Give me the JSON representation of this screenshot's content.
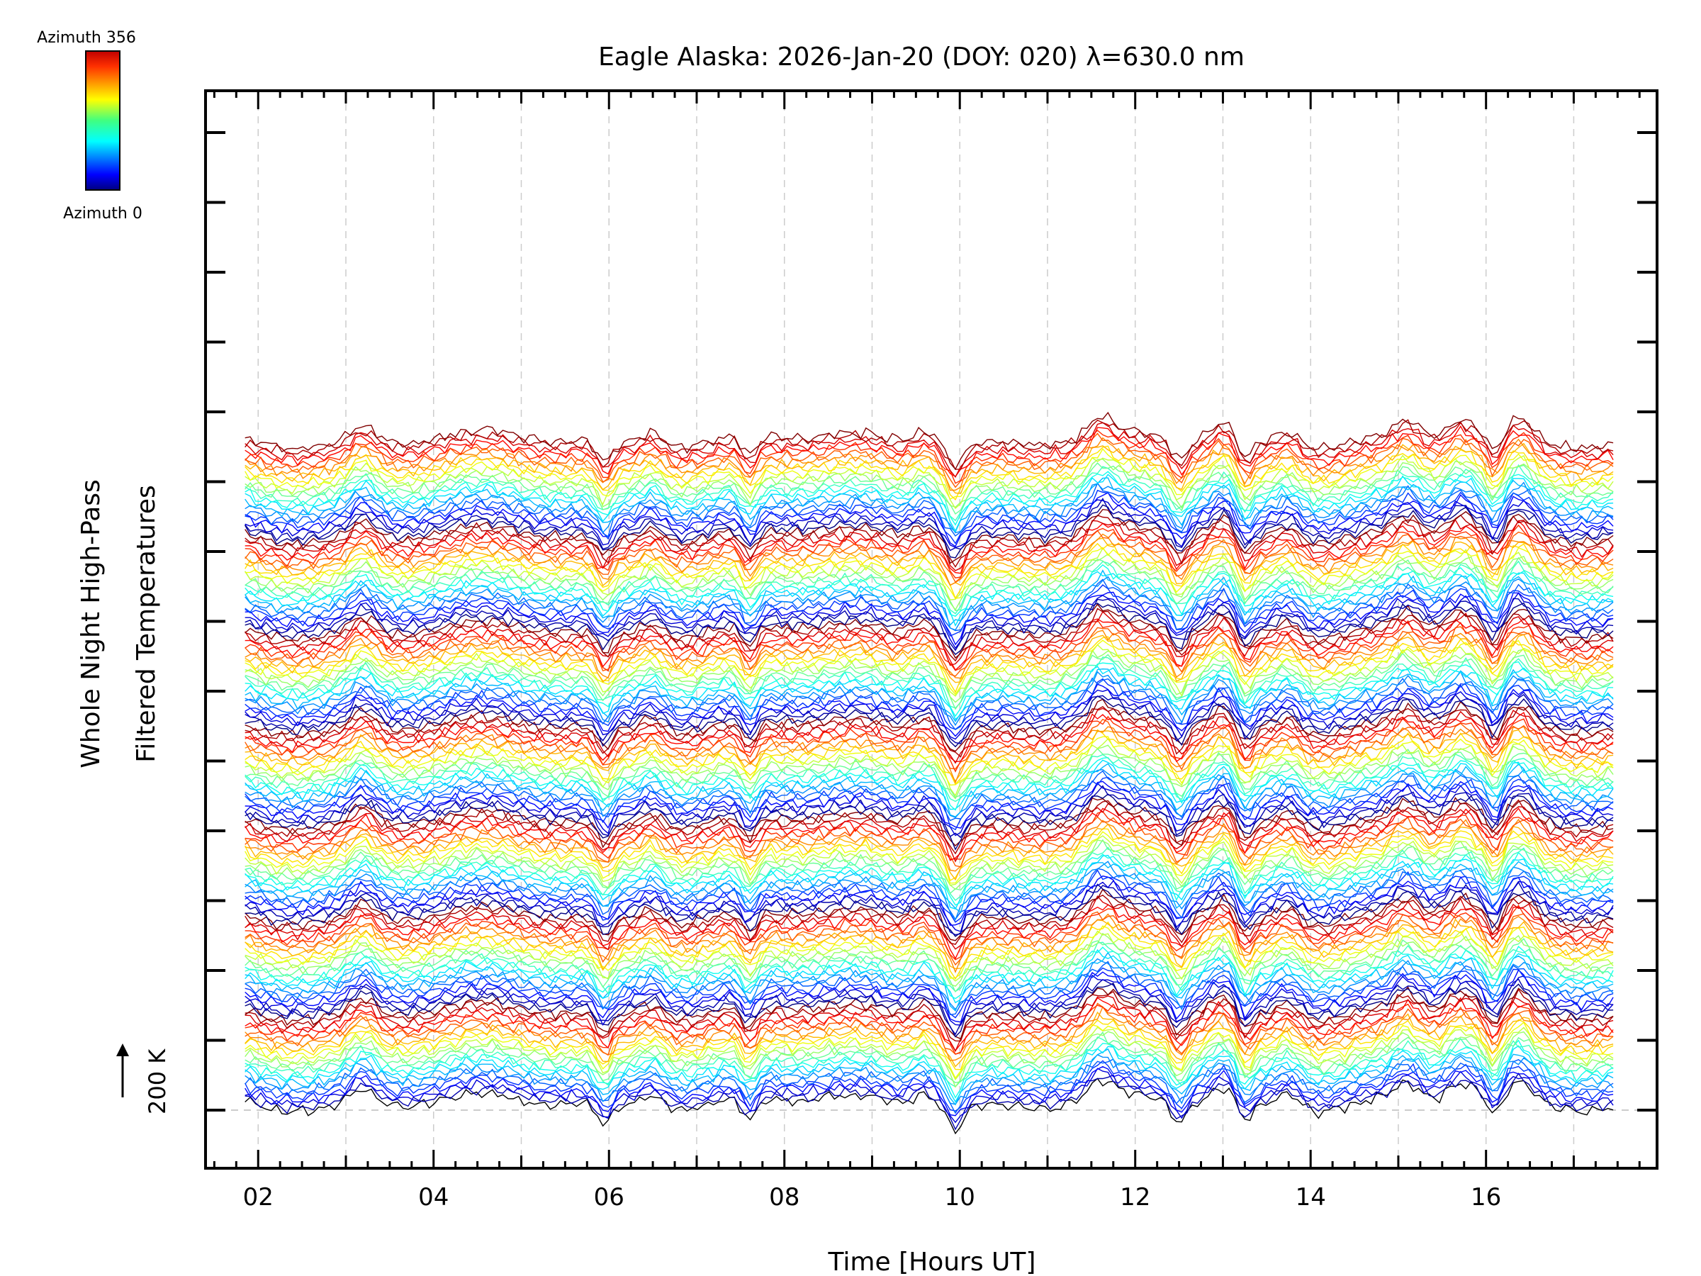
{
  "chart_data": {
    "type": "line",
    "title": "Eagle Alaska: 2026-Jan-20 (DOY: 020) λ=630.0 nm",
    "xlabel": "Time [Hours UT]",
    "ylabel_line1": "Whole Night High-Pass",
    "ylabel_line2": "Filtered Temperatures",
    "xlim": [
      1.4,
      17.95
    ],
    "x_data_range": [
      1.85,
      17.45
    ],
    "x_ticks": [
      2,
      4,
      6,
      8,
      10,
      12,
      14,
      16
    ],
    "x_tick_labels": [
      "02",
      "04",
      "06",
      "08",
      "10",
      "12",
      "14",
      "16"
    ],
    "scale_bar_label": "200 K",
    "colorbar": {
      "top_label": "Azimuth 356",
      "bottom_label": "Azimuth 0",
      "min": 0,
      "max": 356
    },
    "series_groups": 7,
    "series_per_group": 24,
    "trace_spacing_K": 11,
    "notable_dips_hours": [
      5.95,
      7.6,
      9.95,
      12.5,
      13.25,
      16.1
    ],
    "notable_peaks_hours": [
      3.2,
      6.5,
      9.6,
      11.6,
      13.0,
      13.75,
      15.1,
      15.7,
      16.4
    ],
    "gridline_y": "baseline"
  }
}
